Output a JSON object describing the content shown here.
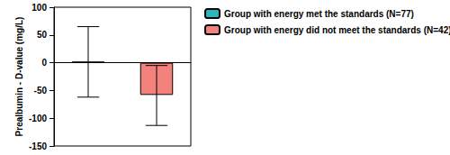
{
  "chart_data": {
    "type": "bar",
    "y_label": "Prealbumin - D-value (mg/L)",
    "categories": [
      null,
      null
    ],
    "series": [
      {
        "name": "Group with energy met the standards (N=77)",
        "color": "#2bb5bf",
        "values": [
          2,
          null
        ],
        "error_low": [
          -62,
          null
        ],
        "error_high": [
          65,
          null
        ]
      },
      {
        "name": "Group with energy did not meet the standards (N=42)",
        "color": "#f4827c",
        "values": [
          null,
          -58
        ],
        "error_low": [
          null,
          -113
        ],
        "error_high": [
          null,
          -5
        ]
      }
    ],
    "ylim": [
      -150,
      100
    ],
    "yticks": [
      -150,
      -100,
      -50,
      0,
      50,
      100
    ],
    "grid": false,
    "legend": "top-right",
    "tick_labels": "y"
  }
}
